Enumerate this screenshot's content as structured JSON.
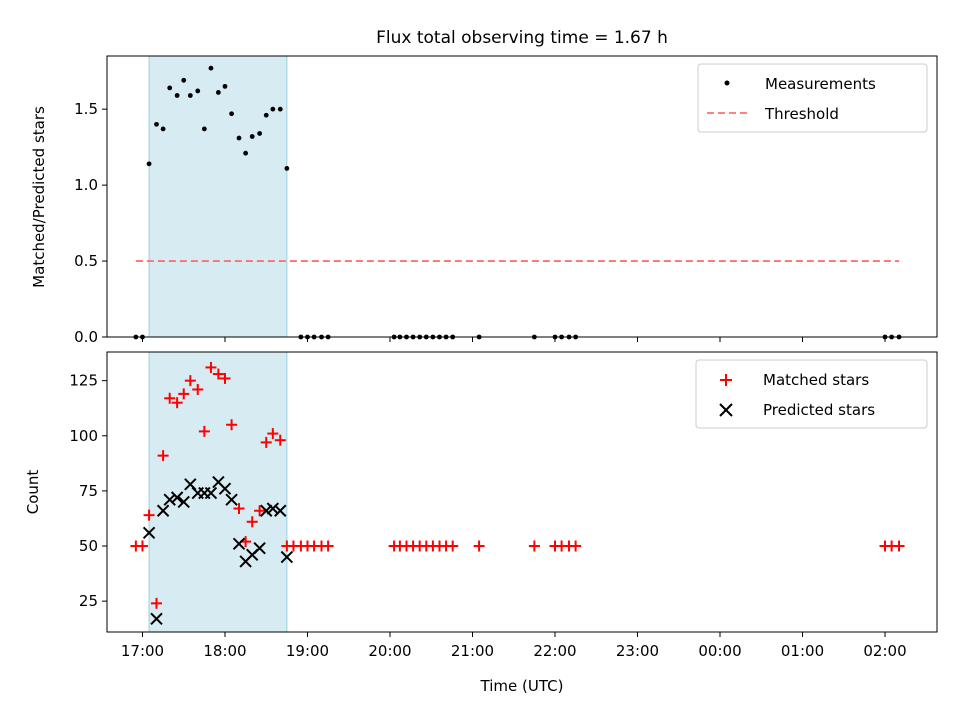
{
  "chart_data": {
    "title": "Flux total observing time = 1.67 h",
    "xlabel": "Time (UTC)",
    "xlim_hours": [
      16.57,
      26.63
    ],
    "x_ticks": [
      {
        "label": "17:00",
        "value": 17
      },
      {
        "label": "18:00",
        "value": 18
      },
      {
        "label": "19:00",
        "value": 19
      },
      {
        "label": "20:00",
        "value": 20
      },
      {
        "label": "21:00",
        "value": 21
      },
      {
        "label": "22:00",
        "value": 22
      },
      {
        "label": "23:00",
        "value": 23
      },
      {
        "label": "00:00",
        "value": 24
      },
      {
        "label": "01:00",
        "value": 25
      },
      {
        "label": "02:00",
        "value": 26
      }
    ],
    "observing_span_hours": [
      17.08,
      18.75
    ],
    "top": {
      "type": "scatter",
      "ylabel": "Matched/Predicted stars",
      "ylim": [
        0,
        1.85
      ],
      "y_ticks": [
        "0.0",
        "0.5",
        "1.0",
        "1.5"
      ],
      "legend": {
        "position": "top-right",
        "entries": [
          "Measurements",
          "Threshold"
        ]
      },
      "threshold": {
        "name": "Threshold",
        "value": 0.5,
        "x_range": [
          16.92,
          26.17
        ],
        "color": "#ff7070"
      },
      "measurements": {
        "name": "Measurements",
        "x": [
          16.92,
          17.0,
          17.08,
          17.17,
          17.25,
          17.33,
          17.42,
          17.5,
          17.58,
          17.67,
          17.75,
          17.83,
          17.92,
          18.0,
          18.08,
          18.17,
          18.25,
          18.33,
          18.42,
          18.5,
          18.58,
          18.67,
          18.75,
          18.92,
          19.0,
          19.08,
          19.17,
          19.25,
          20.05,
          20.12,
          20.2,
          20.28,
          20.36,
          20.44,
          20.52,
          20.6,
          20.68,
          20.76,
          21.08,
          21.75,
          22.0,
          22.08,
          22.17,
          22.25,
          26.0,
          26.08,
          26.17
        ],
        "y": [
          0,
          0,
          1.14,
          1.4,
          1.37,
          1.64,
          1.59,
          1.69,
          1.59,
          1.62,
          1.37,
          1.77,
          1.61,
          1.65,
          1.47,
          1.31,
          1.21,
          1.32,
          1.34,
          1.46,
          1.5,
          1.5,
          1.11,
          0,
          0,
          0,
          0,
          0,
          0,
          0,
          0,
          0,
          0,
          0,
          0,
          0,
          0,
          0,
          0,
          0,
          0,
          0,
          0,
          0,
          0,
          0,
          0
        ]
      }
    },
    "bottom": {
      "type": "scatter",
      "ylabel": "Count",
      "ylim": [
        11,
        138
      ],
      "y_ticks": [
        "25",
        "50",
        "75",
        "100",
        "125"
      ],
      "legend": {
        "position": "top-right",
        "entries": [
          "Matched stars",
          "Predicted stars"
        ]
      },
      "matched": {
        "name": "Matched stars",
        "x": [
          16.92,
          17.0,
          17.08,
          17.17,
          17.25,
          17.33,
          17.42,
          17.5,
          17.58,
          17.67,
          17.75,
          17.83,
          17.92,
          18.0,
          18.08,
          18.17,
          18.25,
          18.33,
          18.42,
          18.5,
          18.58,
          18.67,
          18.75,
          18.83,
          18.92,
          19.0,
          19.08,
          19.17,
          19.25,
          20.05,
          20.12,
          20.2,
          20.28,
          20.36,
          20.44,
          20.52,
          20.6,
          20.68,
          20.76,
          21.08,
          21.75,
          22.0,
          22.08,
          22.17,
          22.25,
          26.0,
          26.08,
          26.17
        ],
        "y": [
          50,
          50,
          64,
          24,
          91,
          117,
          115,
          119,
          125,
          121,
          102,
          131,
          128,
          126,
          105,
          67,
          52,
          61,
          66,
          97,
          101,
          98,
          50,
          50,
          50,
          50,
          50,
          50,
          50,
          50,
          50,
          50,
          50,
          50,
          50,
          50,
          50,
          50,
          50,
          50,
          50,
          50,
          50,
          50,
          50,
          50,
          50,
          50
        ]
      },
      "predicted": {
        "name": "Predicted stars",
        "x": [
          17.08,
          17.17,
          17.25,
          17.33,
          17.42,
          17.5,
          17.58,
          17.67,
          17.75,
          17.83,
          17.92,
          18.0,
          18.08,
          18.17,
          18.25,
          18.33,
          18.42,
          18.5,
          18.58,
          18.67,
          18.75
        ],
        "y": [
          56,
          17,
          66,
          71,
          72,
          70,
          78,
          74,
          74,
          74,
          79,
          76,
          71,
          51,
          43,
          46,
          49,
          66,
          67,
          66,
          45
        ]
      }
    }
  }
}
